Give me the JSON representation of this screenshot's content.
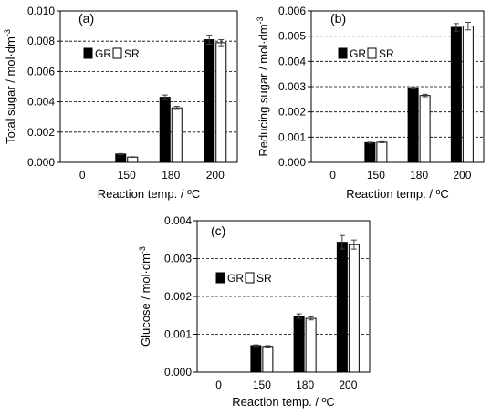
{
  "figure": {
    "colors": {
      "GR": "#000000",
      "SR": "#ffffff",
      "edge": "#000000",
      "gridline": "#000000",
      "errorbar": "#404040"
    }
  },
  "chart_data": [
    {
      "panel": "(a)",
      "type": "bar",
      "categories": [
        "0",
        "150",
        "180",
        "200"
      ],
      "series": [
        {
          "name": "GR",
          "values": [
            0,
            0.00055,
            0.0043,
            0.0081
          ],
          "errors": [
            0,
            3e-05,
            0.00015,
            0.0003
          ]
        },
        {
          "name": "SR",
          "values": [
            0,
            0.00035,
            0.0036,
            0.0079
          ],
          "errors": [
            0,
            2e-05,
            0.0001,
            0.0002
          ]
        }
      ],
      "xlabel": "Reaction temp. / ºC",
      "ylabel": "Total sugar / mol·dm",
      "ylabel_sup": "-3",
      "ylim": [
        0,
        0.01
      ],
      "yticks": [
        "0.000",
        "0.002",
        "0.004",
        "0.006",
        "0.008",
        "0.010"
      ],
      "grid": "dashed horizontal",
      "legend_position": "top-left"
    },
    {
      "panel": "(b)",
      "type": "bar",
      "categories": [
        "0",
        "150",
        "180",
        "200"
      ],
      "series": [
        {
          "name": "GR",
          "values": [
            0,
            0.00078,
            0.00295,
            0.00535
          ],
          "errors": [
            0,
            2e-05,
            4e-05,
            0.00015
          ]
        },
        {
          "name": "SR",
          "values": [
            0,
            0.0008,
            0.00265,
            0.0054
          ],
          "errors": [
            0,
            2e-05,
            5e-05,
            0.00015
          ]
        }
      ],
      "xlabel": "Reaction temp. / ºC",
      "ylabel": "Reducing sugar / mol·dm",
      "ylabel_sup": "-3",
      "ylim": [
        0,
        0.006
      ],
      "yticks": [
        "0.000",
        "0.001",
        "0.002",
        "0.003",
        "0.004",
        "0.005",
        "0.006"
      ],
      "grid": "dashed horizontal",
      "legend_position": "top-left"
    },
    {
      "panel": "(c)",
      "type": "bar",
      "categories": [
        "0",
        "150",
        "180",
        "200"
      ],
      "series": [
        {
          "name": "GR",
          "values": [
            0,
            0.0007,
            0.00148,
            0.00343
          ],
          "errors": [
            0,
            2e-05,
            6e-05,
            0.00018
          ]
        },
        {
          "name": "SR",
          "values": [
            0,
            0.00068,
            0.00142,
            0.00337
          ],
          "errors": [
            0,
            2e-05,
            4e-05,
            0.00012
          ]
        }
      ],
      "xlabel": "Reaction temp. / ºC",
      "ylabel": "Glucose / mol·dm",
      "ylabel_sup": "-3",
      "ylim": [
        0,
        0.004
      ],
      "yticks": [
        "0.000",
        "0.001",
        "0.002",
        "0.003",
        "0.004"
      ],
      "grid": "dashed horizontal",
      "legend_position": "top-left"
    }
  ]
}
